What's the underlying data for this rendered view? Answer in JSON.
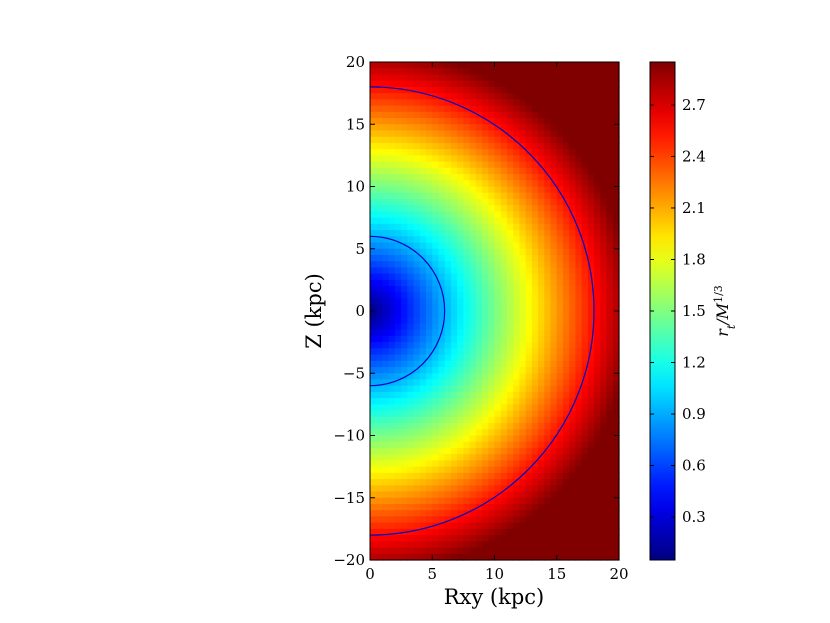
{
  "chart_data": {
    "type": "heatmap",
    "title": "",
    "xlabel": "Rxy (kpc)",
    "ylabel": "Z (kpc)",
    "colorbar_label": "r_t/M^{1/3}",
    "colorbar_label_parts": {
      "base": "r",
      "sub": "t",
      "mid": "/M",
      "sup": "1/3"
    },
    "xlim": [
      0,
      20
    ],
    "ylim": [
      -20,
      20
    ],
    "x_ticks": [
      0,
      5,
      10,
      15,
      20
    ],
    "x_tick_labels": [
      "0",
      "5",
      "10",
      "15",
      "20"
    ],
    "y_ticks": [
      -20,
      -15,
      -10,
      -5,
      0,
      5,
      10,
      15,
      20
    ],
    "y_tick_labels": [
      "−20",
      "−15",
      "−10",
      "−5",
      "0",
      "5",
      "10",
      "15",
      "20"
    ],
    "colorbar_range": [
      0.05,
      2.95
    ],
    "colorbar_ticks": [
      0.3,
      0.6,
      0.9,
      1.2,
      1.5,
      1.8,
      2.1,
      2.4,
      2.7
    ],
    "colorbar_tick_labels": [
      "0.3",
      "0.6",
      "0.9",
      "1.2",
      "1.5",
      "1.8",
      "2.1",
      "2.4",
      "2.7"
    ],
    "colormap": "jet",
    "grid_resolution": [
      40,
      80
    ],
    "field_model": {
      "form": "a + b * r^p",
      "a": 0.05,
      "b": 0.156,
      "p": 0.96
    },
    "contours": [
      {
        "radius": 6,
        "color": "#0000cc"
      },
      {
        "radius": 18,
        "color": "#0000cc"
      }
    ],
    "grid": false,
    "legend": "none"
  }
}
